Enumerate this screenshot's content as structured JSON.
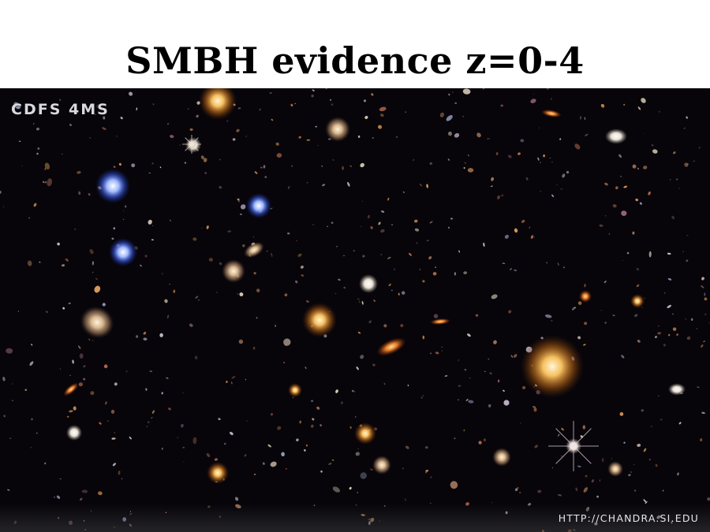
{
  "slide": {
    "title": "SMBH evidence z=0-4"
  },
  "image": {
    "label": "CDFS 4MS",
    "credit": "HTTP://CHANDRA.SI.EDU",
    "background_color": "#07050a"
  }
}
